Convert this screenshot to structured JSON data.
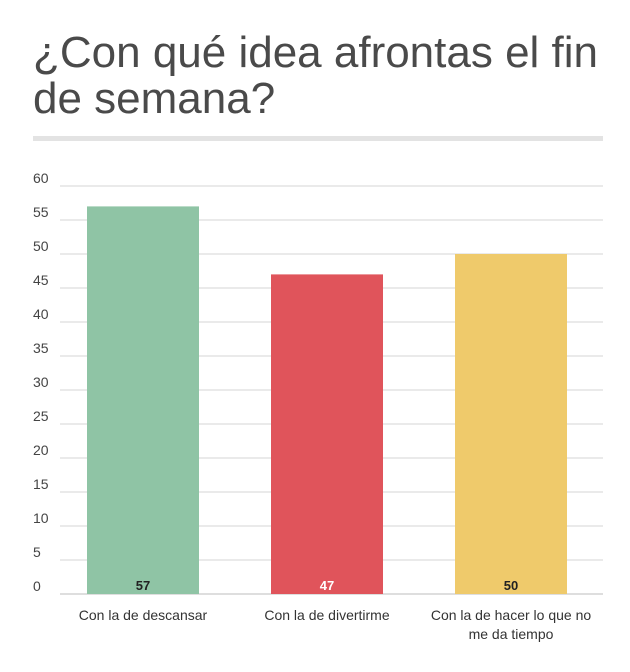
{
  "chart_data": {
    "type": "bar",
    "title": "¿Con qué idea afrontas el fin de semana?",
    "categories": [
      [
        "Con la de descansar"
      ],
      [
        "Con la de divertirme"
      ],
      [
        "Con la de hacer lo que no",
        "me da tiempo"
      ]
    ],
    "values": [
      57,
      47,
      50
    ],
    "data_labels": [
      "57",
      "47",
      "50"
    ],
    "colors": [
      "#8fc4a5",
      "#e0545b",
      "#efca6b"
    ],
    "data_label_colors": [
      "#222222",
      "#ffffff",
      "#222222"
    ],
    "xlabel": "",
    "ylabel": "",
    "ylim": [
      0,
      60
    ],
    "yticks": [
      0,
      5,
      10,
      15,
      20,
      25,
      30,
      35,
      40,
      45,
      50,
      55,
      60
    ],
    "grid": true,
    "legend": "none"
  }
}
